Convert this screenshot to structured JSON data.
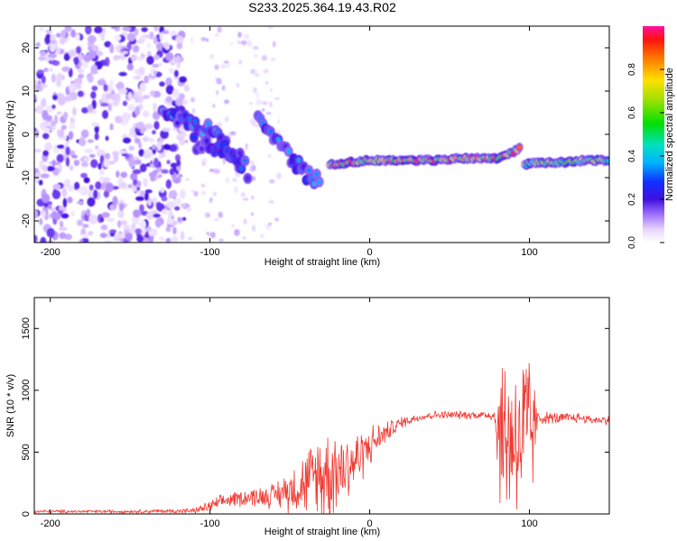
{
  "title": "S233.2025.364.19.43.R02",
  "chart_data": [
    {
      "type": "heatmap",
      "name": "spectrogram",
      "xlabel": "Height of straight line (km)",
      "ylabel": "Frequency (Hz)",
      "xlim": [
        -210,
        150
      ],
      "ylim": [
        -25,
        25
      ],
      "xticks": [
        -200,
        -100,
        0,
        100
      ],
      "yticks": [
        -20,
        -10,
        0,
        10,
        20
      ],
      "colorbar": {
        "label": "Normalized spectral amplitude",
        "range": [
          0,
          1
        ],
        "ticks": [
          0.0,
          0.2,
          0.4,
          0.6,
          0.8
        ]
      },
      "features": [
        {
          "name": "noise-scatter",
          "x_range": [
            -210,
            -115
          ],
          "y_range": [
            -25,
            25
          ],
          "amplitude": 0.15
        },
        {
          "name": "descending-trace-1",
          "x": [
            -130,
            -120,
            -110,
            -100,
            -90,
            -80
          ],
          "y": [
            5,
            4,
            2,
            1,
            -3,
            -8
          ],
          "amplitude": 0.35
        },
        {
          "name": "descending-trace-2",
          "x": [
            -70,
            -60,
            -50,
            -40,
            -30
          ],
          "y": [
            3,
            -1,
            -5,
            -9,
            -11
          ],
          "amplitude": 0.35
        },
        {
          "name": "descending-trace-3",
          "x": [
            -110,
            -100,
            -90,
            -80,
            -75
          ],
          "y": [
            -2,
            -3,
            -3,
            -6,
            -10
          ],
          "amplitude": 0.3
        },
        {
          "name": "main-tone",
          "x": [
            -25,
            0,
            20,
            40,
            60,
            80,
            90,
            95
          ],
          "y": [
            -7,
            -6,
            -6,
            -6,
            -5.5,
            -5.5,
            -4,
            -3
          ],
          "amplitude": 0.85
        },
        {
          "name": "late-tone",
          "x": [
            97,
            105,
            120,
            135,
            150
          ],
          "y": [
            -7,
            -6.5,
            -6.5,
            -6,
            -6
          ],
          "amplitude": 0.7
        }
      ]
    },
    {
      "type": "line",
      "name": "snr",
      "xlabel": "Height of straight line (km)",
      "ylabel": "SNR (10 * v/v)",
      "xlim": [
        -210,
        150
      ],
      "ylim": [
        0,
        1750
      ],
      "xticks": [
        -200,
        -100,
        0,
        100
      ],
      "yticks": [
        0,
        500,
        1000,
        1500
      ],
      "color": "#f03a32",
      "envelope": {
        "x": [
          -210,
          -150,
          -110,
          -100,
          -90,
          -80,
          -60,
          -40,
          -30,
          -20,
          -10,
          0,
          10,
          20,
          30,
          40,
          50,
          60,
          70,
          78,
          80,
          85,
          90,
          95,
          100,
          105,
          110,
          120,
          130,
          140,
          150
        ],
        "base": [
          20,
          20,
          25,
          60,
          110,
          130,
          150,
          250,
          320,
          360,
          420,
          550,
          660,
          740,
          780,
          800,
          800,
          800,
          800,
          800,
          700,
          600,
          650,
          600,
          620,
          770,
          780,
          770,
          780,
          760,
          760
        ],
        "amp": [
          15,
          15,
          25,
          60,
          70,
          80,
          120,
          300,
          500,
          450,
          300,
          200,
          100,
          60,
          40,
          40,
          40,
          40,
          40,
          60,
          600,
          900,
          800,
          850,
          1000,
          80,
          60,
          60,
          50,
          40,
          40
        ]
      }
    }
  ]
}
